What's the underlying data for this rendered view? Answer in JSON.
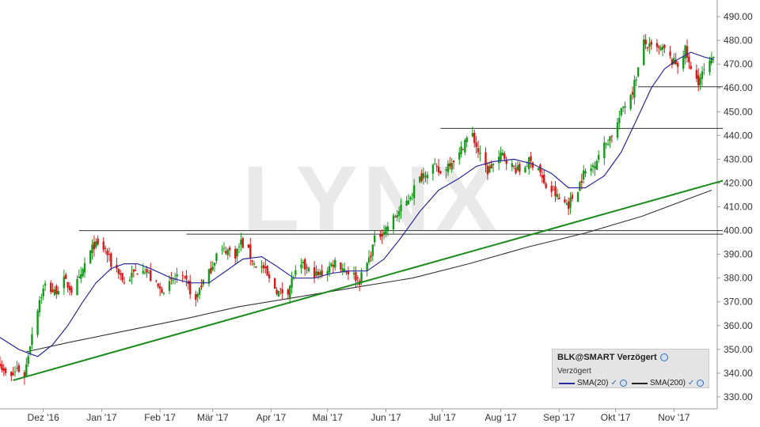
{
  "chart_data": {
    "type": "candlestick",
    "symbol": "BLK@SMART Verzögert",
    "watermark": "LYNX",
    "ylim": [
      325,
      497
    ],
    "yticks": [
      "330.00",
      "340.00",
      "350.00",
      "360.00",
      "370.00",
      "380.00",
      "390.00",
      "400.00",
      "410.00",
      "420.00",
      "430.00",
      "440.00",
      "450.00",
      "460.00",
      "470.00",
      "480.00",
      "490.00"
    ],
    "x_start": "2016-11-08",
    "x_end": "2017-11-24",
    "xticks": [
      {
        "date": "2016-12-01",
        "label": "Dez '16"
      },
      {
        "date": "2017-01-01",
        "label": "Jan '17"
      },
      {
        "date": "2017-02-01",
        "label": "Feb '17"
      },
      {
        "date": "2017-03-01",
        "label": "Mär '17"
      },
      {
        "date": "2017-04-01",
        "label": "Apr '17"
      },
      {
        "date": "2017-05-01",
        "label": "Mai '17"
      },
      {
        "date": "2017-06-01",
        "label": "Jun '17"
      },
      {
        "date": "2017-07-01",
        "label": "Jul '17"
      },
      {
        "date": "2017-08-01",
        "label": "Aug '17"
      },
      {
        "date": "2017-09-01",
        "label": "Sep '17"
      },
      {
        "date": "2017-10-01",
        "label": "Okt '17"
      },
      {
        "date": "2017-11-01",
        "label": "Nov '17"
      }
    ],
    "close_anchors": [
      [
        "2016-11-08",
        345
      ],
      [
        "2016-11-10",
        340
      ],
      [
        "2016-11-14",
        338
      ],
      [
        "2016-11-17",
        342
      ],
      [
        "2016-11-21",
        339
      ],
      [
        "2016-11-23",
        348
      ],
      [
        "2016-11-25",
        357
      ],
      [
        "2016-11-29",
        371
      ],
      [
        "2016-12-02",
        377
      ],
      [
        "2016-12-07",
        374
      ],
      [
        "2016-12-12",
        379
      ],
      [
        "2016-12-16",
        375
      ],
      [
        "2016-12-21",
        380
      ],
      [
        "2016-12-23",
        386
      ],
      [
        "2016-12-28",
        394
      ],
      [
        "2017-01-03",
        392
      ],
      [
        "2017-01-06",
        386
      ],
      [
        "2017-01-10",
        383
      ],
      [
        "2017-01-13",
        378
      ],
      [
        "2017-01-18",
        382
      ],
      [
        "2017-01-23",
        385
      ],
      [
        "2017-01-27",
        380
      ],
      [
        "2017-02-01",
        375
      ],
      [
        "2017-02-06",
        377
      ],
      [
        "2017-02-10",
        381
      ],
      [
        "2017-02-15",
        378
      ],
      [
        "2017-02-20",
        370
      ],
      [
        "2017-02-22",
        376
      ],
      [
        "2017-02-27",
        382
      ],
      [
        "2017-03-03",
        390
      ],
      [
        "2017-03-08",
        392
      ],
      [
        "2017-03-13",
        390
      ],
      [
        "2017-03-16",
        395
      ],
      [
        "2017-03-20",
        391
      ],
      [
        "2017-03-23",
        386
      ],
      [
        "2017-03-28",
        384
      ],
      [
        "2017-03-31",
        379
      ],
      [
        "2017-04-05",
        374
      ],
      [
        "2017-04-10",
        375
      ],
      [
        "2017-04-13",
        381
      ],
      [
        "2017-04-18",
        385
      ],
      [
        "2017-04-21",
        383
      ],
      [
        "2017-04-26",
        381
      ],
      [
        "2017-05-01",
        384
      ],
      [
        "2017-05-05",
        387
      ],
      [
        "2017-05-10",
        384
      ],
      [
        "2017-05-15",
        381
      ],
      [
        "2017-05-18",
        379
      ],
      [
        "2017-05-23",
        388
      ],
      [
        "2017-05-26",
        396
      ],
      [
        "2017-06-01",
        401
      ],
      [
        "2017-06-06",
        406
      ],
      [
        "2017-06-12",
        412
      ],
      [
        "2017-06-16",
        418
      ],
      [
        "2017-06-21",
        424
      ],
      [
        "2017-06-26",
        427
      ],
      [
        "2017-06-30",
        424
      ],
      [
        "2017-07-05",
        429
      ],
      [
        "2017-07-10",
        432
      ],
      [
        "2017-07-13",
        438
      ],
      [
        "2017-07-17",
        440
      ],
      [
        "2017-07-21",
        431
      ],
      [
        "2017-07-25",
        425
      ],
      [
        "2017-07-28",
        428
      ],
      [
        "2017-08-02",
        432
      ],
      [
        "2017-08-07",
        427
      ],
      [
        "2017-08-11",
        425
      ],
      [
        "2017-08-16",
        429
      ],
      [
        "2017-08-21",
        427
      ],
      [
        "2017-08-24",
        419
      ],
      [
        "2017-08-29",
        416
      ],
      [
        "2017-09-01",
        413
      ],
      [
        "2017-09-06",
        411
      ],
      [
        "2017-09-11",
        418
      ],
      [
        "2017-09-14",
        424
      ],
      [
        "2017-09-18",
        426
      ],
      [
        "2017-09-22",
        432
      ],
      [
        "2017-09-27",
        438
      ],
      [
        "2017-10-02",
        445
      ],
      [
        "2017-10-05",
        452
      ],
      [
        "2017-10-10",
        459
      ],
      [
        "2017-10-13",
        468
      ],
      [
        "2017-10-16",
        479
      ],
      [
        "2017-10-19",
        477
      ],
      [
        "2017-10-24",
        476
      ],
      [
        "2017-10-27",
        476
      ],
      [
        "2017-10-31",
        471
      ],
      [
        "2017-11-03",
        470
      ],
      [
        "2017-11-07",
        476
      ],
      [
        "2017-11-10",
        467
      ],
      [
        "2017-11-14",
        463
      ],
      [
        "2017-11-17",
        467
      ],
      [
        "2017-11-21",
        471
      ],
      [
        "2017-11-22",
        473
      ]
    ],
    "sma20_anchors": [
      [
        "2016-11-08",
        355
      ],
      [
        "2016-11-18",
        350
      ],
      [
        "2016-11-28",
        347
      ],
      [
        "2016-12-06",
        352
      ],
      [
        "2016-12-14",
        360
      ],
      [
        "2016-12-22",
        370
      ],
      [
        "2016-12-29",
        378
      ],
      [
        "2017-01-06",
        384
      ],
      [
        "2017-01-13",
        386
      ],
      [
        "2017-01-20",
        386
      ],
      [
        "2017-01-27",
        384
      ],
      [
        "2017-02-07",
        380
      ],
      [
        "2017-02-17",
        378
      ],
      [
        "2017-02-27",
        378
      ],
      [
        "2017-03-08",
        383
      ],
      [
        "2017-03-17",
        388
      ],
      [
        "2017-03-27",
        389
      ],
      [
        "2017-04-04",
        385
      ],
      [
        "2017-04-13",
        380
      ],
      [
        "2017-04-24",
        380
      ],
      [
        "2017-05-03",
        382
      ],
      [
        "2017-05-12",
        383
      ],
      [
        "2017-05-22",
        383
      ],
      [
        "2017-05-31",
        388
      ],
      [
        "2017-06-09",
        397
      ],
      [
        "2017-06-19",
        408
      ],
      [
        "2017-06-29",
        417
      ],
      [
        "2017-07-10",
        422
      ],
      [
        "2017-07-19",
        427
      ],
      [
        "2017-07-28",
        429
      ],
      [
        "2017-08-08",
        430
      ],
      [
        "2017-08-18",
        428
      ],
      [
        "2017-08-28",
        424
      ],
      [
        "2017-09-06",
        418
      ],
      [
        "2017-09-15",
        418
      ],
      [
        "2017-09-25",
        423
      ],
      [
        "2017-10-04",
        433
      ],
      [
        "2017-10-13",
        448
      ],
      [
        "2017-10-20",
        460
      ],
      [
        "2017-10-27",
        468
      ],
      [
        "2017-11-03",
        472
      ],
      [
        "2017-11-10",
        475
      ],
      [
        "2017-11-17",
        473
      ],
      [
        "2017-11-22",
        472
      ]
    ],
    "sma200_anchors": [
      [
        "2016-11-22",
        349
      ],
      [
        "2016-12-15",
        353
      ],
      [
        "2017-01-15",
        358
      ],
      [
        "2017-02-15",
        363
      ],
      [
        "2017-03-15",
        368
      ],
      [
        "2017-04-15",
        372
      ],
      [
        "2017-05-15",
        376
      ],
      [
        "2017-06-15",
        380
      ],
      [
        "2017-07-15",
        386
      ],
      [
        "2017-08-15",
        393
      ],
      [
        "2017-09-15",
        399
      ],
      [
        "2017-10-15",
        406
      ],
      [
        "2017-11-21",
        417
      ]
    ],
    "trendline": [
      [
        "2016-11-15",
        337
      ],
      [
        "2017-11-27",
        421
      ]
    ],
    "resistance_lines": [
      {
        "from": "2016-12-20",
        "to": "2017-11-27",
        "y": 400
      },
      {
        "from": "2017-02-15",
        "to": "2017-11-27",
        "y": 398.5
      },
      {
        "from": "2017-06-30",
        "to": "2017-11-27",
        "y": 443
      },
      {
        "from": "2017-10-13",
        "to": "2017-11-27",
        "y": 460.5
      }
    ],
    "colors": {
      "up": "#139a1a",
      "down": "#d91818",
      "sma20": "#2a2a9a",
      "sma200": "#333333",
      "trend": "#1a8a1a",
      "level": "#333333"
    },
    "legend_placement": "bottom-right",
    "grid": false
  },
  "legend": {
    "title": "BLK@SMART Verzögert",
    "subtitle": "Verzögert",
    "items": [
      {
        "label": "SMA(20)",
        "color": "#2a2a9a"
      },
      {
        "label": "SMA(200)",
        "color": "#222222"
      }
    ]
  }
}
